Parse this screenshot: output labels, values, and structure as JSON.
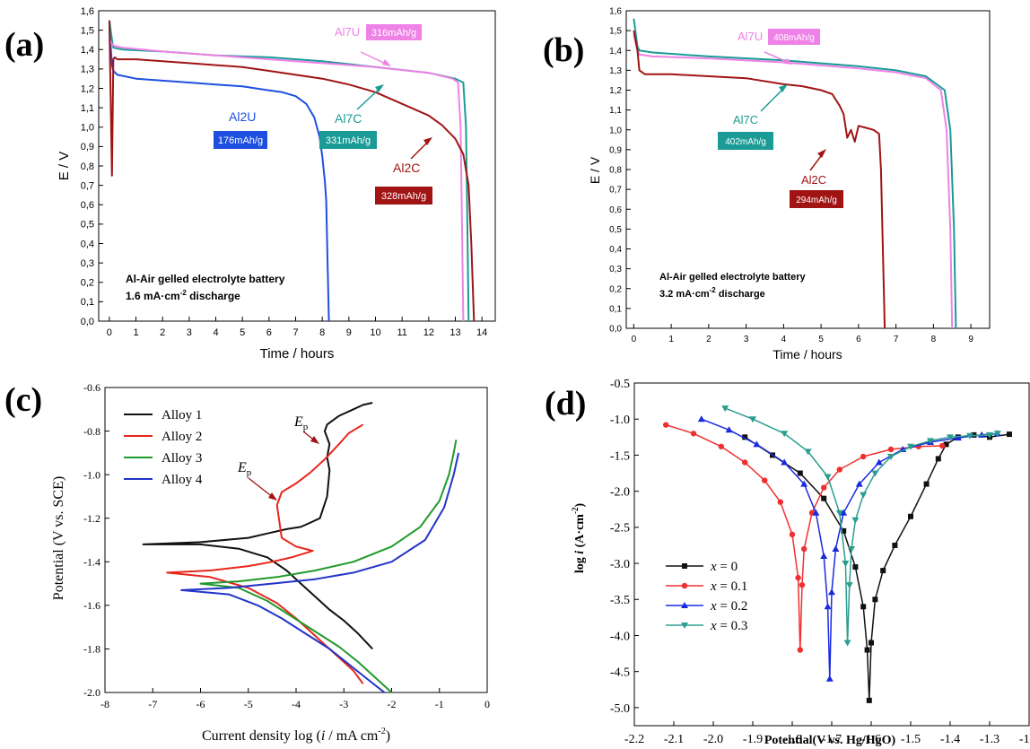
{
  "chart_data": [
    {
      "panel": "(a)",
      "type": "line",
      "xlabel": "Time / hours",
      "ylabel": "E / V",
      "xlim": [
        -0.4,
        14.5
      ],
      "ylim": [
        0,
        1.6
      ],
      "xticks": [
        "0",
        "1",
        "2",
        "3",
        "4",
        "5",
        "6",
        "7",
        "8",
        "9",
        "10",
        "11",
        "12",
        "13",
        "14"
      ],
      "yticks": [
        "0,0",
        "0,1",
        "0,2",
        "0,3",
        "0,4",
        "0,5",
        "0,6",
        "0,7",
        "0,8",
        "0,9",
        "1,0",
        "1,1",
        "1,2",
        "1,3",
        "1,4",
        "1,5",
        "1,6"
      ],
      "note_line1": "Al-Air gelled electrolyte battery",
      "note_line2_pre": "1.6 mA·cm",
      "note_line2_sup": "-2",
      "note_line2_post": " discharge",
      "series": [
        {
          "name": "Al2U",
          "color": "#1f4fe0",
          "label": "176mAh/g",
          "x": [
            0,
            0.1,
            0.15,
            0.3,
            1,
            2,
            3,
            4,
            5,
            6,
            6.5,
            7,
            7.4,
            7.7,
            7.9,
            8.0,
            8.1,
            8.15,
            8.2,
            8.25
          ],
          "y": [
            1.52,
            1.32,
            1.29,
            1.27,
            1.25,
            1.24,
            1.23,
            1.22,
            1.21,
            1.19,
            1.18,
            1.16,
            1.12,
            1.05,
            0.95,
            0.85,
            0.72,
            0.62,
            0.3,
            0
          ]
        },
        {
          "name": "Al7C",
          "color": "#1a9b95",
          "label": "331mAh/g",
          "x": [
            0,
            0.1,
            0.15,
            0.5,
            2,
            4,
            6,
            8,
            10,
            12,
            13,
            13.3,
            13.4,
            13.45,
            13.5
          ],
          "y": [
            1.55,
            1.45,
            1.41,
            1.4,
            1.39,
            1.37,
            1.36,
            1.34,
            1.31,
            1.28,
            1.25,
            1.23,
            1.0,
            0.5,
            0
          ]
        },
        {
          "name": "Al7U",
          "color": "#ee82e6",
          "label": "316mAh/g",
          "x": [
            0,
            0.1,
            0.15,
            0.5,
            2,
            4,
            6,
            8,
            10,
            12,
            12.9,
            13.1,
            13.2,
            13.25,
            13.3
          ],
          "y": [
            1.45,
            1.43,
            1.42,
            1.41,
            1.39,
            1.37,
            1.35,
            1.33,
            1.31,
            1.28,
            1.25,
            1.23,
            1.0,
            0.5,
            0
          ]
        },
        {
          "name": "Al2C",
          "color": "#a01414",
          "label": "328mAh/g",
          "x": [
            0,
            0.1,
            0.15,
            0.2,
            0.3,
            1,
            2,
            3,
            4,
            5,
            6,
            7,
            8,
            9,
            10,
            11,
            12,
            12.5,
            13,
            13.3,
            13.5,
            13.6,
            13.65,
            13.7
          ],
          "y": [
            1.55,
            0.75,
            1.35,
            1.36,
            1.35,
            1.35,
            1.34,
            1.33,
            1.32,
            1.31,
            1.29,
            1.27,
            1.25,
            1.22,
            1.18,
            1.12,
            1.06,
            1.01,
            0.94,
            0.86,
            0.7,
            0.4,
            0.2,
            0
          ]
        }
      ]
    },
    {
      "panel": "(b)",
      "type": "line",
      "xlabel": "Time / hours",
      "ylabel": "E / V",
      "xlim": [
        -0.2,
        9.5
      ],
      "ylim": [
        0,
        1.6
      ],
      "xticks": [
        "0",
        "1",
        "2",
        "3",
        "4",
        "5",
        "6",
        "7",
        "8",
        "9"
      ],
      "yticks": [
        "0,0",
        "0,1",
        "0,2",
        "0,3",
        "0,4",
        "0,5",
        "0,6",
        "0,7",
        "0,8",
        "0,9",
        "1,0",
        "1,1",
        "1,2",
        "1,3",
        "1,4",
        "1,5",
        "1,6"
      ],
      "note_line1": "Al-Air gelled electrolyte battery",
      "note_line2_pre": "3.2 mA·cm",
      "note_line2_sup": "-2",
      "note_line2_post": " discharge",
      "series": [
        {
          "name": "Al7U",
          "color": "#ee82e6",
          "label": "408mAh/g",
          "x": [
            0,
            0.1,
            0.15,
            0.5,
            2,
            4,
            6,
            7,
            7.8,
            8.2,
            8.35,
            8.45,
            8.5
          ],
          "y": [
            1.48,
            1.4,
            1.38,
            1.37,
            1.36,
            1.34,
            1.31,
            1.29,
            1.26,
            1.2,
            1.0,
            0.5,
            0
          ]
        },
        {
          "name": "Al7C",
          "color": "#1a9b95",
          "label": "402mAh/g",
          "x": [
            0,
            0.1,
            0.15,
            0.5,
            2,
            4,
            6,
            7,
            7.8,
            8.3,
            8.45,
            8.55,
            8.6
          ],
          "y": [
            1.56,
            1.42,
            1.4,
            1.39,
            1.37,
            1.35,
            1.32,
            1.3,
            1.27,
            1.2,
            1.0,
            0.5,
            0
          ]
        },
        {
          "name": "Al2C",
          "color": "#a01414",
          "label": "294mAh/g",
          "x": [
            0,
            0.1,
            0.15,
            0.3,
            1,
            2,
            3,
            4,
            4.5,
            5,
            5.3,
            5.5,
            5.6,
            5.7,
            5.8,
            5.9,
            6.0,
            6.2,
            6.4,
            6.55,
            6.6,
            6.65,
            6.7
          ],
          "y": [
            1.5,
            1.4,
            1.3,
            1.28,
            1.28,
            1.27,
            1.26,
            1.23,
            1.22,
            1.2,
            1.18,
            1.12,
            1.08,
            0.96,
            1.0,
            0.94,
            1.02,
            1.01,
            1.0,
            0.98,
            0.8,
            0.4,
            0
          ]
        }
      ]
    },
    {
      "panel": "(c)",
      "type": "line",
      "xlabel_pre": "Current density log (",
      "xlabel_i": "i",
      "xlabel_mid": " / mA cm",
      "xlabel_sup": "-2",
      "xlabel_post": ")",
      "ylabel": "Potential (V vs. SCE)",
      "xlim": [
        -8,
        0
      ],
      "ylim": [
        -2.0,
        -0.6
      ],
      "xticks": [
        "-8",
        "-7",
        "-6",
        "-5",
        "-4",
        "-3",
        "-2",
        "-1",
        "0"
      ],
      "yticks": [
        "-2.0",
        "-1.8",
        "-1.6",
        "-1.4",
        "-1.2",
        "-1.0",
        "-0.8",
        "-0.6"
      ],
      "legend": [
        "Alloy 1",
        "Alloy 2",
        "Alloy 3",
        "Alloy 4"
      ],
      "annotation": "E",
      "annotation_sub": "p",
      "series": [
        {
          "name": "Alloy 1",
          "color": "#111111",
          "x": [
            -2.4,
            -2.7,
            -3.0,
            -3.3,
            -3.6,
            -3.9,
            -4.2,
            -4.6,
            -5.2,
            -6.0,
            -7.2,
            -6.0,
            -5.0,
            -4.6,
            -4.2,
            -3.9,
            -3.7,
            -3.5,
            -3.35,
            -3.3,
            -3.35,
            -3.3,
            -3.4,
            -3.35,
            -3.1,
            -2.8,
            -2.6,
            -2.4
          ],
          "y": [
            -1.8,
            -1.73,
            -1.67,
            -1.62,
            -1.56,
            -1.5,
            -1.44,
            -1.38,
            -1.34,
            -1.32,
            -1.32,
            -1.31,
            -1.29,
            -1.27,
            -1.25,
            -1.24,
            -1.22,
            -1.2,
            -1.1,
            -0.98,
            -0.92,
            -0.86,
            -0.8,
            -0.77,
            -0.73,
            -0.7,
            -0.68,
            -0.67
          ]
        },
        {
          "name": "Alloy 2",
          "color": "#e8261c",
          "x": [
            -2.6,
            -2.8,
            -3.1,
            -3.4,
            -3.7,
            -4.0,
            -4.4,
            -5.0,
            -5.8,
            -6.7,
            -5.8,
            -5.0,
            -4.5,
            -4.1,
            -3.8,
            -3.65,
            -4.0,
            -4.3,
            -4.4,
            -4.3,
            -4.0,
            -3.7,
            -3.4,
            -3.1,
            -2.9,
            -2.6
          ],
          "y": [
            -1.96,
            -1.9,
            -1.84,
            -1.78,
            -1.72,
            -1.66,
            -1.59,
            -1.52,
            -1.47,
            -1.45,
            -1.44,
            -1.42,
            -1.4,
            -1.38,
            -1.36,
            -1.35,
            -1.33,
            -1.29,
            -1.14,
            -1.08,
            -1.04,
            -0.99,
            -0.93,
            -0.86,
            -0.81,
            -0.77
          ]
        },
        {
          "name": "Alloy 3",
          "color": "#1f9a2a",
          "x": [
            -2.0,
            -2.3,
            -2.7,
            -3.1,
            -3.6,
            -4.1,
            -4.6,
            -5.2,
            -6.0,
            -5.2,
            -4.4,
            -3.6,
            -2.8,
            -2.0,
            -1.4,
            -1.0,
            -0.8,
            -0.7,
            -0.65
          ],
          "y": [
            -2.0,
            -1.94,
            -1.86,
            -1.79,
            -1.72,
            -1.65,
            -1.58,
            -1.52,
            -1.5,
            -1.49,
            -1.47,
            -1.44,
            -1.4,
            -1.33,
            -1.24,
            -1.12,
            -1.0,
            -0.9,
            -0.84
          ]
        },
        {
          "name": "Alloy 4",
          "color": "#2234c8",
          "x": [
            -2.15,
            -2.5,
            -2.9,
            -3.3,
            -3.8,
            -4.3,
            -4.8,
            -5.4,
            -6.4,
            -5.4,
            -4.5,
            -3.6,
            -2.8,
            -2.0,
            -1.3,
            -0.9,
            -0.7,
            -0.6
          ],
          "y": [
            -2.0,
            -1.94,
            -1.87,
            -1.8,
            -1.73,
            -1.66,
            -1.6,
            -1.55,
            -1.53,
            -1.52,
            -1.5,
            -1.48,
            -1.45,
            -1.4,
            -1.3,
            -1.15,
            -1.0,
            -0.9
          ]
        }
      ]
    },
    {
      "panel": "(d)",
      "type": "line",
      "xlabel": "Potential(V vs. Hg/HgO)",
      "ylabel_pre": "log ",
      "ylabel_i": "i",
      "ylabel_mid": " (A·cm",
      "ylabel_sup": "-2",
      "ylabel_post": ")",
      "xlim": [
        -2.2,
        -1.2
      ],
      "ylim": [
        -5.25,
        -0.5
      ],
      "xticks": [
        "-2.2",
        "-2.1",
        "-2.0",
        "-1.9",
        "-1.8",
        "-1.7",
        "-1.6",
        "-1.5",
        "-1.4",
        "-1.3",
        "-1.2"
      ],
      "yticks": [
        "-5.0",
        "-4.5",
        "-4.0",
        "-3.5",
        "-3.0",
        "-2.5",
        "-2.0",
        "-1.5",
        "-1.0",
        "-0.5"
      ],
      "legend_prefix": "x",
      "legend": [
        "= 0",
        "= 0.1",
        "= 0.2",
        "= 0.3"
      ],
      "series": [
        {
          "name": "x = 0",
          "color": "#111111",
          "marker": "square",
          "x": [
            -1.92,
            -1.85,
            -1.78,
            -1.72,
            -1.67,
            -1.64,
            -1.62,
            -1.61,
            -1.605,
            -1.6,
            -1.59,
            -1.57,
            -1.54,
            -1.5,
            -1.46,
            -1.43,
            -1.41,
            -1.38,
            -1.34,
            -1.3,
            -1.25
          ],
          "y": [
            -1.25,
            -1.5,
            -1.75,
            -2.1,
            -2.55,
            -3.05,
            -3.6,
            -4.2,
            -4.9,
            -4.1,
            -3.5,
            -3.1,
            -2.75,
            -2.35,
            -1.9,
            -1.55,
            -1.35,
            -1.25,
            -1.22,
            -1.25,
            -1.21
          ]
        },
        {
          "name": "x = 0.1",
          "color": "#f03030",
          "marker": "circle",
          "x": [
            -2.12,
            -2.05,
            -1.98,
            -1.92,
            -1.87,
            -1.83,
            -1.8,
            -1.785,
            -1.78,
            -1.775,
            -1.77,
            -1.75,
            -1.72,
            -1.68,
            -1.62,
            -1.55,
            -1.48,
            -1.42
          ],
          "y": [
            -1.08,
            -1.2,
            -1.38,
            -1.6,
            -1.85,
            -2.15,
            -2.6,
            -3.2,
            -4.2,
            -3.3,
            -2.8,
            -2.3,
            -1.95,
            -1.7,
            -1.52,
            -1.42,
            -1.38,
            -1.37
          ]
        },
        {
          "name": "x = 0.2",
          "color": "#1a2ae0",
          "marker": "triangle",
          "x": [
            -2.03,
            -1.96,
            -1.89,
            -1.82,
            -1.77,
            -1.74,
            -1.72,
            -1.71,
            -1.705,
            -1.7,
            -1.69,
            -1.67,
            -1.63,
            -1.58,
            -1.52,
            -1.45,
            -1.38,
            -1.32,
            -1.28
          ],
          "y": [
            -1.0,
            -1.15,
            -1.35,
            -1.6,
            -1.9,
            -2.3,
            -2.9,
            -3.6,
            -4.6,
            -3.4,
            -2.8,
            -2.3,
            -1.9,
            -1.6,
            -1.42,
            -1.32,
            -1.26,
            -1.22,
            -1.2
          ]
        },
        {
          "name": "x = 0.3",
          "color": "#2a9d8f",
          "marker": "triangle-down",
          "x": [
            -1.97,
            -1.9,
            -1.82,
            -1.76,
            -1.71,
            -1.68,
            -1.665,
            -1.66,
            -1.655,
            -1.65,
            -1.64,
            -1.62,
            -1.59,
            -1.55,
            -1.5,
            -1.45,
            -1.4,
            -1.35,
            -1.3,
            -1.28
          ],
          "y": [
            -0.85,
            -1.0,
            -1.2,
            -1.45,
            -1.8,
            -2.3,
            -3.0,
            -4.1,
            -3.3,
            -2.8,
            -2.4,
            -2.05,
            -1.75,
            -1.52,
            -1.38,
            -1.3,
            -1.25,
            -1.23,
            -1.22,
            -1.2
          ]
        }
      ]
    }
  ]
}
